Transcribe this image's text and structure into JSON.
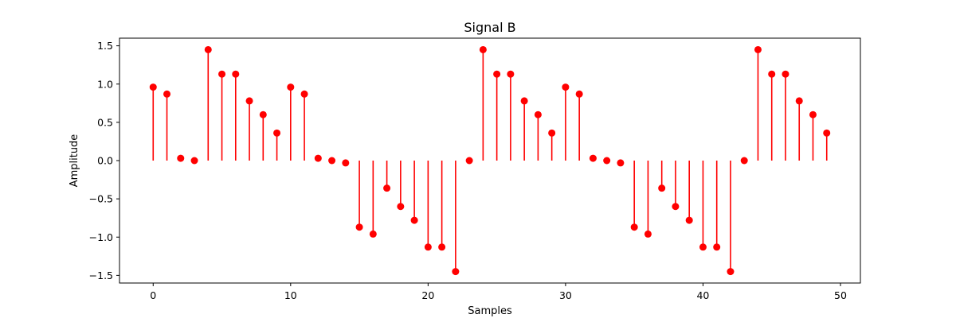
{
  "chart_data": {
    "type": "stem",
    "title": "Signal B",
    "xlabel": "Samples",
    "ylabel": "Amplitude",
    "xlim": [
      -2.45,
      51.45
    ],
    "ylim": [
      -1.6,
      1.6
    ],
    "xticks": [
      0,
      10,
      20,
      30,
      40,
      50
    ],
    "yticks": [
      -1.5,
      -1.0,
      -0.5,
      0.0,
      0.5,
      1.0,
      1.5
    ],
    "ytick_labels": [
      "−1.5",
      "−1.0",
      "−0.5",
      "0.0",
      "0.5",
      "1.0",
      "1.5"
    ],
    "grid": false,
    "color": "#ff0000",
    "x": [
      0,
      1,
      2,
      3,
      4,
      5,
      6,
      7,
      8,
      9,
      10,
      11,
      12,
      13,
      14,
      15,
      16,
      17,
      18,
      19,
      20,
      21,
      22,
      23,
      24,
      25,
      26,
      27,
      28,
      29,
      30,
      31,
      32,
      33,
      34,
      35,
      36,
      37,
      38,
      39,
      40,
      41,
      42,
      43,
      44,
      45,
      46,
      47,
      48,
      49
    ],
    "y": [
      0.96,
      0.87,
      0.03,
      0.0,
      1.45,
      1.13,
      1.13,
      0.78,
      0.6,
      0.36,
      0.96,
      0.87,
      0.03,
      0.0,
      -0.03,
      -0.87,
      -0.96,
      -0.36,
      -0.6,
      -0.78,
      -1.13,
      -1.13,
      -1.45,
      0.0,
      1.45,
      1.13,
      1.13,
      0.78,
      0.6,
      0.36,
      0.96,
      0.87,
      0.03,
      0.0,
      -0.03,
      -0.87,
      -0.96,
      -0.36,
      -0.6,
      -0.78,
      -1.13,
      -1.13,
      -1.45,
      0.0,
      1.45,
      1.13,
      1.13,
      0.78,
      0.6,
      0.36
    ]
  }
}
